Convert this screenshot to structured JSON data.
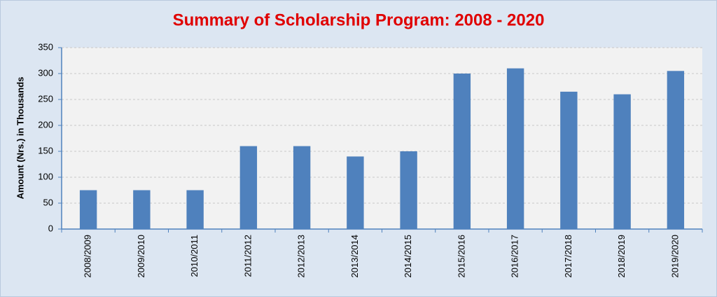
{
  "chart_data": {
    "type": "bar",
    "title": "Summary of Scholarship Program: 2008 - 2020",
    "y_label": "Amount (Nrs.) in Thousands",
    "categories": [
      "2008/2009",
      "2009/2010",
      "2010/2011",
      "2011/2012",
      "2012/2013",
      "2013/2014",
      "2014/2015",
      "2015/2016",
      "2016/2017",
      "2017/2018",
      "2018/2019",
      "2019/2020"
    ],
    "values": [
      75,
      75,
      75,
      160,
      160,
      140,
      150,
      300,
      310,
      265,
      260,
      305
    ],
    "color": "#4f81bd",
    "ylim": [
      0,
      350
    ],
    "yticks": [
      0,
      50,
      100,
      150,
      200,
      250,
      300,
      350
    ],
    "grid": true
  }
}
